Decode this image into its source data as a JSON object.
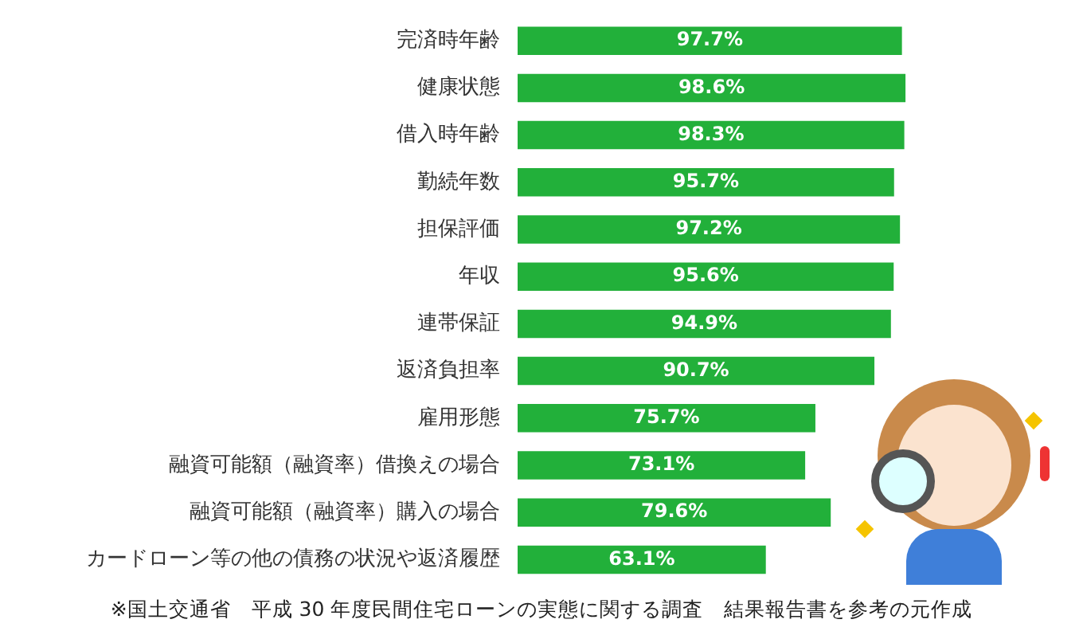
{
  "chart_data": {
    "type": "bar",
    "orientation": "horizontal",
    "categories": [
      "完済時年齢",
      "健康状態",
      "借入時年齢",
      "勤続年数",
      "担保評価",
      "年収",
      "連帯保証",
      "返済負担率",
      "雇用形態",
      "融資可能額（融資率）借換えの場合",
      "融資可能額（融資率）購入の場合",
      "カードローン等の他の債務の状況や返済履歴"
    ],
    "values": [
      97.7,
      98.6,
      98.3,
      95.7,
      97.2,
      95.6,
      94.9,
      90.7,
      75.7,
      73.1,
      79.6,
      63.1
    ],
    "value_labels": [
      "97.7%",
      "98.6%",
      "98.3%",
      "95.7%",
      "97.2%",
      "95.6%",
      "94.9%",
      "90.7%",
      "75.7%",
      "73.1%",
      "79.6%",
      "63.1%"
    ],
    "color": "#22b03a",
    "xlim": [
      0,
      100
    ],
    "tick_labels": "y",
    "legend": false,
    "annotations": [
      "※国土交通省　平成 30 年度民間住宅ローンの実態に関する調査　結果報告書を参考の元作成"
    ]
  }
}
